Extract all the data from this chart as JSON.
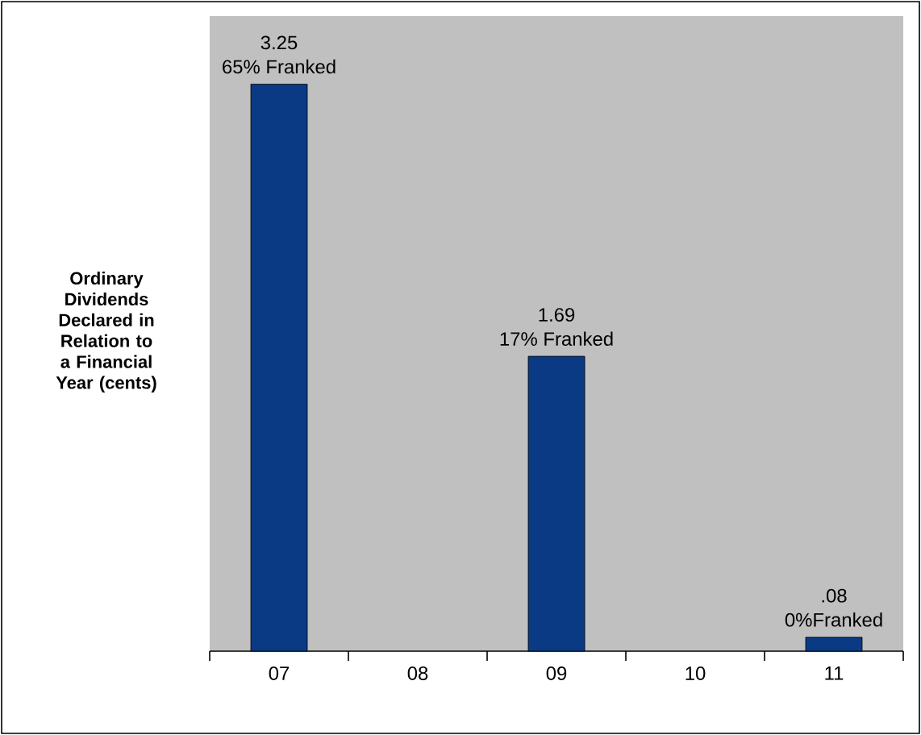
{
  "chart_data": {
    "type": "bar",
    "ylabel": "Ordinary Dividends Declared in Relation to a Financial Year (cents)",
    "categories": [
      "07",
      "08",
      "09",
      "10",
      "11"
    ],
    "values": [
      3.25,
      null,
      1.69,
      null,
      0.08
    ],
    "color": "#0b3a85",
    "value_labels": [
      "3.25",
      null,
      "1.69",
      null,
      ".08"
    ],
    "annotations": [
      {
        "text": "65% Franked",
        "x": "07",
        "y": 3.25
      },
      {
        "text": "17% Franked",
        "x": "09",
        "y": 1.69
      },
      {
        "text": "0%Franked",
        "x": "11",
        "y": 0.08
      }
    ],
    "legend": false
  }
}
